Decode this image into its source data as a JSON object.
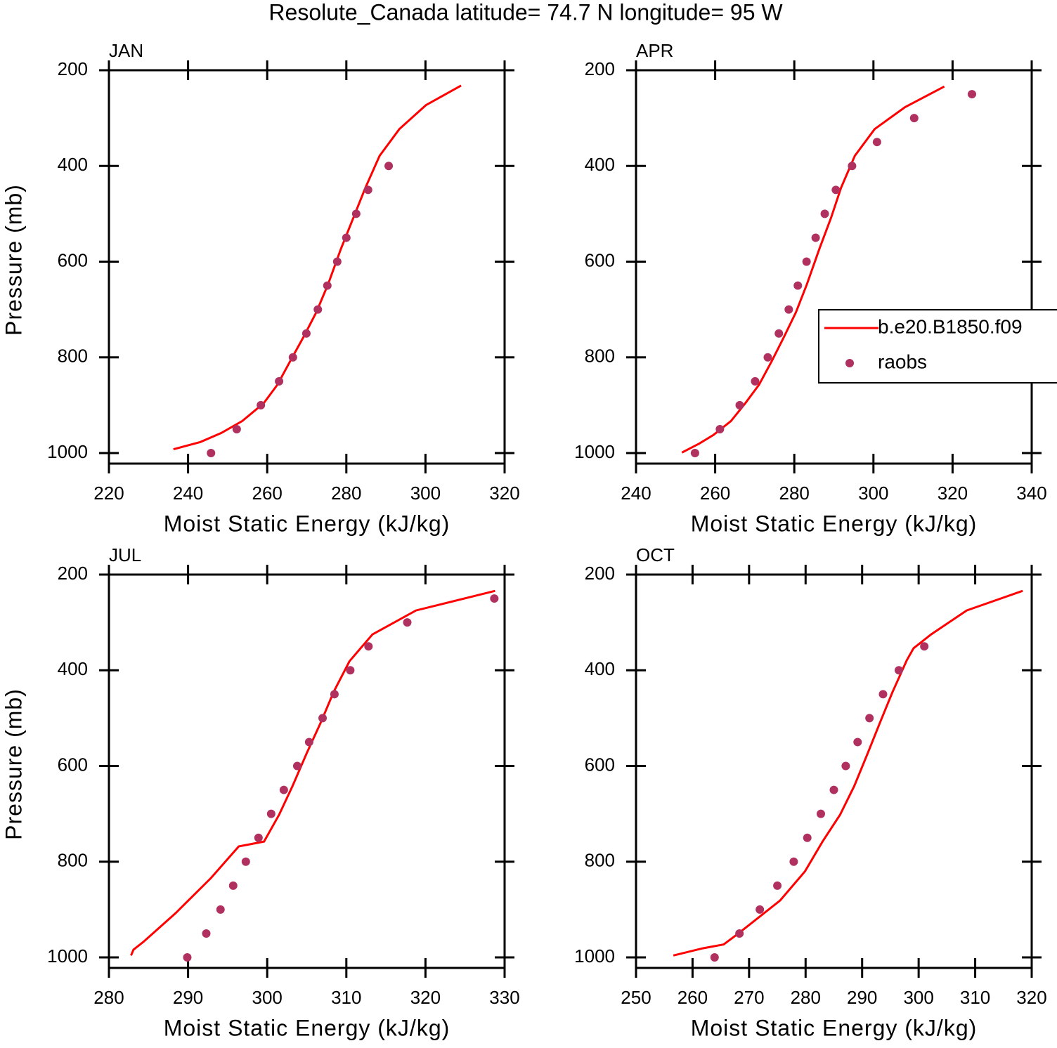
{
  "title": "Resolute_Canada  latitude= 74.7 N longitude= 95 W",
  "chart_data": [
    {
      "type": "line",
      "panel_label": "JAN",
      "xlabel": "Moist Static Energy (kJ/kg)",
      "ylabel": "Pressure (mb)",
      "xlim": [
        220,
        320
      ],
      "xticks": [
        220,
        240,
        260,
        280,
        300,
        320
      ],
      "ylim": [
        200,
        1022
      ],
      "yticks": [
        200,
        400,
        600,
        800,
        1000
      ],
      "y_inverted": true,
      "series": [
        {
          "name": "b.e20.B1850.f09",
          "color": "#ff0000",
          "style": "line",
          "x": [
            309.0,
            300.1,
            293.4,
            288.4,
            284.8,
            281.8,
            278.6,
            275.4,
            272.4,
            269.2,
            265.8,
            262.6,
            259.1,
            253.7,
            248.4,
            243.1,
            236.3
          ],
          "values": [
            232,
            273,
            323,
            379,
            446,
            508,
            574,
            647,
            706,
            757,
            808,
            857,
            896,
            933,
            958,
            977,
            992
          ]
        },
        {
          "name": "raobs",
          "color": "#b03060",
          "style": "markers",
          "x": [
            245.8,
            252.3,
            258.4,
            263.0,
            266.5,
            269.9,
            272.8,
            275.2,
            277.7,
            280.0,
            282.5,
            285.5,
            290.7
          ],
          "values": [
            1000,
            950,
            900,
            850,
            800,
            750,
            700,
            650,
            600,
            550,
            500,
            450,
            400
          ]
        }
      ]
    },
    {
      "type": "line",
      "panel_label": "APR",
      "xlabel": "Moist Static Energy (kJ/kg)",
      "legend": "right",
      "xlim": [
        240,
        340
      ],
      "xticks": [
        240,
        260,
        280,
        300,
        320,
        340
      ],
      "ylim": [
        200,
        1022
      ],
      "yticks": [
        200,
        400,
        600,
        800,
        1000
      ],
      "y_inverted": true,
      "series": [
        {
          "name": "b.e20.B1850.f09",
          "color": "#ff0000",
          "style": "line",
          "x": [
            317.9,
            308.0,
            300.3,
            295.3,
            291.8,
            289.3,
            286.3,
            283.2,
            280.4,
            277.4,
            274.3,
            271.1,
            267.6,
            264.0,
            259.6,
            256.0,
            251.6
          ],
          "values": [
            234,
            277,
            323,
            379,
            446,
            508,
            574,
            647,
            706,
            757,
            808,
            857,
            896,
            933,
            962,
            980,
            999
          ]
        },
        {
          "name": "raobs",
          "color": "#b03060",
          "style": "markers",
          "x": [
            254.9,
            261.2,
            266.2,
            270.1,
            273.3,
            276.1,
            278.6,
            280.9,
            283.1,
            285.4,
            287.7,
            290.5,
            294.6,
            300.9,
            310.3,
            324.9
          ],
          "values": [
            1000,
            950,
            900,
            850,
            800,
            750,
            700,
            650,
            600,
            550,
            500,
            450,
            400,
            350,
            300,
            250
          ]
        }
      ]
    },
    {
      "type": "line",
      "panel_label": "JUL",
      "xlabel": "Moist Static Energy (kJ/kg)",
      "ylabel": "Pressure (mb)",
      "xlim": [
        280,
        330
      ],
      "xticks": [
        280,
        290,
        300,
        310,
        320,
        330
      ],
      "ylim": [
        200,
        1022
      ],
      "yticks": [
        200,
        400,
        600,
        800,
        1000
      ],
      "y_inverted": true,
      "series": [
        {
          "name": "b.e20.B1850.f09",
          "color": "#ff0000",
          "style": "line",
          "x": [
            328.8,
            318.8,
            313.3,
            310.4,
            308.4,
            306.8,
            305.0,
            303.2,
            301.5,
            299.6,
            296.4,
            292.9,
            288.4,
            284.4,
            283.1,
            282.8
          ],
          "values": [
            234,
            275,
            325,
            381,
            445,
            508,
            573,
            642,
            702,
            758,
            768,
            834,
            908,
            967,
            984,
            996
          ]
        },
        {
          "name": "raobs",
          "color": "#b03060",
          "style": "markers",
          "x": [
            289.9,
            292.3,
            294.1,
            295.7,
            297.3,
            298.9,
            300.5,
            302.1,
            303.8,
            305.3,
            307.0,
            308.5,
            310.5,
            312.8,
            317.7,
            328.7
          ],
          "values": [
            1000,
            950,
            900,
            850,
            800,
            750,
            700,
            650,
            600,
            550,
            500,
            450,
            400,
            350,
            300,
            250
          ]
        }
      ]
    },
    {
      "type": "line",
      "panel_label": "OCT",
      "xlabel": "Moist Static Energy (kJ/kg)",
      "xlim": [
        250,
        320
      ],
      "xticks": [
        250,
        260,
        270,
        280,
        290,
        300,
        310,
        320
      ],
      "ylim": [
        200,
        1022
      ],
      "yticks": [
        200,
        400,
        600,
        800,
        1000
      ],
      "y_inverted": true,
      "series": [
        {
          "name": "b.e20.B1850.f09",
          "color": "#ff0000",
          "style": "line",
          "x": [
            318.4,
            308.5,
            302.2,
            299.1,
            297.9,
            295.4,
            293.2,
            291.0,
            288.6,
            286.1,
            283.0,
            279.9,
            275.5,
            271.1,
            268.0,
            265.5,
            261.8,
            256.6
          ],
          "values": [
            234,
            275,
            325,
            354,
            379,
            445,
            508,
            573,
            642,
            702,
            758,
            820,
            881,
            922,
            951,
            973,
            981,
            996
          ]
        },
        {
          "name": "raobs",
          "color": "#b03060",
          "style": "markers",
          "x": [
            263.9,
            268.3,
            271.9,
            275.0,
            277.9,
            280.3,
            282.7,
            285.0,
            287.1,
            289.2,
            291.3,
            293.7,
            296.5,
            301.0
          ],
          "values": [
            1000,
            950,
            900,
            850,
            800,
            750,
            700,
            650,
            600,
            550,
            500,
            450,
            400,
            350
          ]
        }
      ]
    }
  ]
}
